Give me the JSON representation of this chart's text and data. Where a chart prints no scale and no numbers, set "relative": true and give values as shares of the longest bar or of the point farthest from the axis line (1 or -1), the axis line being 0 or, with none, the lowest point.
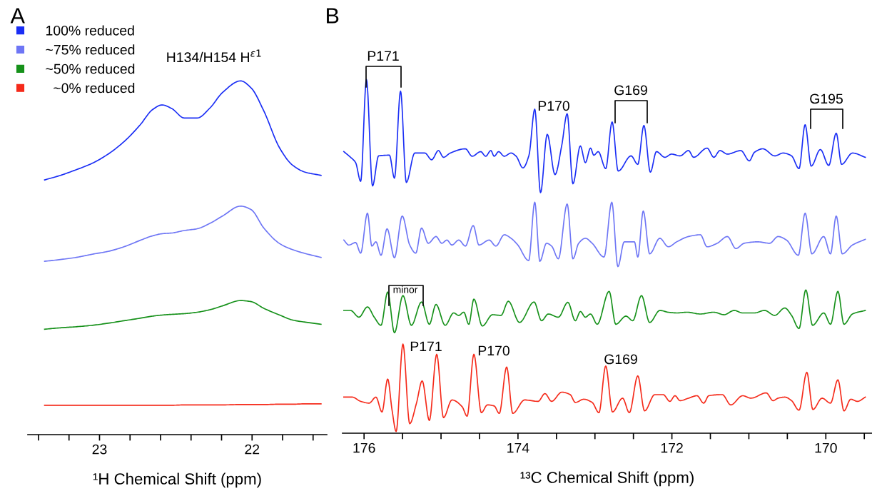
{
  "chart_data": [
    {
      "type": "line",
      "title": "A",
      "xlabel": "¹H Chemical Shift (ppm)",
      "relative": true,
      "legend": "top left",
      "grid": false,
      "tick_labels": "x",
      "xlim": [
        23.47,
        21.51
      ],
      "xticks": [
        {
          "value": 23.4,
          "label": null
        },
        {
          "value": 23.2,
          "label": null
        },
        23,
        {
          "value": 22.8,
          "label": null
        },
        {
          "value": 22.6,
          "label": null
        },
        {
          "value": 22.4,
          "label": null
        },
        {
          "value": 22.2,
          "label": null
        },
        22,
        {
          "value": 21.8,
          "label": null
        },
        {
          "value": 21.6,
          "label": null
        }
      ],
      "x": [
        23.36,
        23.256,
        23.152,
        23.048,
        22.944,
        22.84,
        22.735,
        22.652,
        22.59,
        22.527,
        22.444,
        22.36,
        22.277,
        22.194,
        22.075,
        22.006,
        21.923,
        21.819,
        21.735,
        21.652,
        21.548
      ],
      "annotations": [
        "H134/H154 H$^{ε1}$"
      ],
      "series": [
        {
          "name": "100% reduced",
          "color": "#1a2ef5",
          "values": [
            0.72,
            0.733,
            0.749,
            0.767,
            0.793,
            0.828,
            0.875,
            0.919,
            0.932,
            0.922,
            0.895,
            0.895,
            0.923,
            0.967,
            1.0,
            0.98,
            0.915,
            0.81,
            0.762,
            0.742,
            0.733
          ]
        },
        {
          "name": "~75% reduced",
          "color": "#6e76f5",
          "values": [
            0.49,
            0.495,
            0.501,
            0.51,
            0.518,
            0.531,
            0.549,
            0.562,
            0.568,
            0.57,
            0.577,
            0.582,
            0.597,
            0.618,
            0.646,
            0.636,
            0.584,
            0.54,
            0.523,
            0.512,
            0.501
          ]
        },
        {
          "name": "~50% reduced",
          "color": "#16911a",
          "values": [
            0.298,
            0.302,
            0.305,
            0.309,
            0.315,
            0.322,
            0.329,
            0.335,
            0.338,
            0.34,
            0.342,
            0.346,
            0.353,
            0.364,
            0.379,
            0.376,
            0.357,
            0.338,
            0.324,
            0.318,
            0.312
          ]
        },
        {
          "name": "  ~0% reduced",
          "color": "#f52a1a",
          "values": [
            0.083,
            0.083,
            0.083,
            0.083,
            0.083,
            0.083,
            0.083,
            0.083,
            0.083,
            0.083,
            0.084,
            0.084,
            0.084,
            0.084,
            0.085,
            0.085,
            0.085,
            0.086,
            0.086,
            0.087,
            0.087
          ]
        }
      ]
    },
    {
      "type": "line",
      "title": "B",
      "xlabel": "¹³C Chemical Shift (ppm)",
      "relative": true,
      "grid": false,
      "tick_labels": "x",
      "xlim": [
        176.28,
        169.4
      ],
      "xticks": [
        176,
        {
          "value": 175.5,
          "label": null
        },
        {
          "value": 175,
          "label": null
        },
        {
          "value": 174.5,
          "label": null
        },
        174,
        {
          "value": 173.5,
          "label": null
        },
        {
          "value": 173,
          "label": null
        },
        {
          "value": 172.5,
          "label": null
        },
        172,
        {
          "value": 171.5,
          "label": null
        },
        {
          "value": 171,
          "label": null
        },
        {
          "value": 170.5,
          "label": null
        },
        170,
        {
          "value": 169.5,
          "label": null
        }
      ],
      "annotations": [
        "P171",
        "G169",
        "G195",
        "minor",
        "P170",
        "P171",
        "P170",
        "G169"
      ],
      "series": [
        {
          "color": "#1a2ef5",
          "x": [
            176.263,
            176.176,
            176.11,
            176.044,
            175.969,
            175.89,
            175.811,
            175.671,
            175.605,
            175.526,
            175.451,
            175.341,
            175.21,
            175.122,
            175.034,
            174.968,
            174.88,
            174.683,
            174.595,
            174.485,
            174.419,
            174.353,
            174.309,
            174.252,
            174.178,
            174.09,
            174.024,
            173.936,
            173.857,
            173.782,
            173.707,
            173.62,
            173.519,
            173.431,
            173.361,
            173.286,
            173.19,
            173.124,
            173.058,
            173.014,
            172.957,
            172.86,
            172.777,
            172.698,
            172.531,
            172.443,
            172.364,
            172.28,
            172.201,
            172.092,
            172.004,
            171.894,
            171.784,
            171.718,
            171.543,
            171.455,
            171.376,
            171.279,
            171.104,
            170.994,
            170.928,
            170.818,
            170.664,
            170.555,
            170.445,
            170.348,
            170.269,
            170.19,
            170.071,
            169.962,
            169.865,
            169.795,
            169.654,
            169.487
          ],
          "values": [
            0.796,
            0.78,
            0.765,
            0.712,
            1.0,
            0.699,
            0.784,
            0.786,
            0.721,
            0.967,
            0.709,
            0.792,
            0.792,
            0.773,
            0.799,
            0.78,
            0.792,
            0.804,
            0.783,
            0.796,
            0.783,
            0.799,
            0.783,
            0.796,
            0.783,
            0.792,
            0.783,
            0.75,
            0.786,
            0.916,
            0.68,
            0.845,
            0.731,
            0.814,
            0.903,
            0.705,
            0.812,
            0.765,
            0.806,
            0.786,
            0.796,
            0.748,
            0.88,
            0.741,
            0.784,
            0.76,
            0.87,
            0.738,
            0.796,
            0.78,
            0.789,
            0.784,
            0.799,
            0.78,
            0.806,
            0.78,
            0.799,
            0.789,
            0.799,
            0.77,
            0.794,
            0.804,
            0.784,
            0.792,
            0.784,
            0.748,
            0.872,
            0.755,
            0.802,
            0.757,
            0.848,
            0.76,
            0.792,
            0.78
          ]
        },
        {
          "color": "#6e76f5",
          "x": [
            176.263,
            176.198,
            176.11,
            176.044,
            175.956,
            175.899,
            175.846,
            175.78,
            175.701,
            175.605,
            175.504,
            175.407,
            175.328,
            175.253,
            175.166,
            175.065,
            174.99,
            174.924,
            174.858,
            174.77,
            174.683,
            174.582,
            174.507,
            174.375,
            174.287,
            174.178,
            174.09,
            174.002,
            173.861,
            173.782,
            173.716,
            173.629,
            173.563,
            173.475,
            173.361,
            173.286,
            173.211,
            173.124,
            173.036,
            172.882,
            172.781,
            172.702,
            172.619,
            172.487,
            172.443,
            172.372,
            172.289,
            172.157,
            172.047,
            171.938,
            171.784,
            171.63,
            171.543,
            171.411,
            171.279,
            171.169,
            171.06,
            170.884,
            170.73,
            170.62,
            170.511,
            170.357,
            170.269,
            170.181,
            170.027,
            169.939,
            169.865,
            169.786,
            169.654,
            169.487
          ],
          "values": [
            0.546,
            0.532,
            0.539,
            0.509,
            0.622,
            0.529,
            0.541,
            0.503,
            0.578,
            0.496,
            0.614,
            0.532,
            0.509,
            0.58,
            0.537,
            0.556,
            0.537,
            0.546,
            0.532,
            0.546,
            0.529,
            0.587,
            0.532,
            0.546,
            0.529,
            0.561,
            0.551,
            0.532,
            0.488,
            0.653,
            0.486,
            0.537,
            0.529,
            0.493,
            0.648,
            0.493,
            0.537,
            0.551,
            0.537,
            0.498,
            0.653,
            0.471,
            0.541,
            0.541,
            0.498,
            0.628,
            0.507,
            0.551,
            0.527,
            0.541,
            0.556,
            0.561,
            0.527,
            0.537,
            0.556,
            0.522,
            0.537,
            0.541,
            0.537,
            0.556,
            0.546,
            0.503,
            0.622,
            0.507,
            0.556,
            0.507,
            0.614,
            0.507,
            0.532,
            0.548
          ]
        },
        {
          "color": "#16911a",
          "x": [
            176.263,
            176.176,
            176.066,
            175.956,
            175.868,
            175.78,
            175.693,
            175.605,
            175.495,
            175.385,
            175.253,
            175.152,
            175.065,
            174.946,
            174.836,
            174.77,
            174.704,
            174.639,
            174.573,
            174.463,
            174.331,
            174.221,
            174.125,
            173.98,
            173.791,
            173.694,
            173.606,
            173.475,
            173.352,
            173.255,
            173.189,
            173.124,
            173.058,
            172.97,
            172.816,
            172.729,
            172.597,
            172.509,
            172.395,
            172.289,
            172.157,
            172.047,
            171.938,
            171.806,
            171.63,
            171.455,
            171.323,
            171.191,
            171.081,
            170.928,
            170.796,
            170.664,
            170.533,
            170.445,
            170.348,
            170.26,
            170.172,
            170.027,
            169.939,
            169.843,
            169.764,
            169.654,
            169.487
          ],
          "values": [
            0.347,
            0.347,
            0.328,
            0.357,
            0.328,
            0.305,
            0.399,
            0.284,
            0.389,
            0.305,
            0.371,
            0.308,
            0.364,
            0.305,
            0.34,
            0.333,
            0.342,
            0.308,
            0.379,
            0.303,
            0.335,
            0.333,
            0.373,
            0.313,
            0.371,
            0.318,
            0.337,
            0.328,
            0.37,
            0.318,
            0.344,
            0.328,
            0.337,
            0.308,
            0.401,
            0.308,
            0.331,
            0.318,
            0.389,
            0.313,
            0.347,
            0.342,
            0.34,
            0.342,
            0.337,
            0.342,
            0.335,
            0.347,
            0.34,
            0.34,
            0.347,
            0.333,
            0.354,
            0.333,
            0.296,
            0.405,
            0.305,
            0.34,
            0.308,
            0.401,
            0.308,
            0.337,
            0.347
          ]
        },
        {
          "color": "#f52a1a",
          "x": [
            176.263,
            176.154,
            176.044,
            175.934,
            175.846,
            175.767,
            175.693,
            175.636,
            175.583,
            175.495,
            175.407,
            175.319,
            175.245,
            175.152,
            175.056,
            174.968,
            174.858,
            174.726,
            174.661,
            174.573,
            174.476,
            174.397,
            174.309,
            174.243,
            174.147,
            174.068,
            173.914,
            173.738,
            173.65,
            173.563,
            173.431,
            173.321,
            173.255,
            173.145,
            173.036,
            172.948,
            172.86,
            172.772,
            172.641,
            172.553,
            172.443,
            172.355,
            172.223,
            172.113,
            172.026,
            171.96,
            171.894,
            171.784,
            171.674,
            171.587,
            171.521,
            171.345,
            171.235,
            171.081,
            170.972,
            170.774,
            170.686,
            170.62,
            170.533,
            170.445,
            170.348,
            170.247,
            170.168,
            170.049,
            169.939,
            169.843,
            169.764,
            169.676,
            169.588,
            169.487
          ],
          "values": [
            0.102,
            0.102,
            0.09,
            0.085,
            0.102,
            0.06,
            0.153,
            0.065,
            0.005,
            0.252,
            0.027,
            0.085,
            0.148,
            0.036,
            0.223,
            0.044,
            0.094,
            0.075,
            0.048,
            0.223,
            0.058,
            0.08,
            0.077,
            0.056,
            0.187,
            0.056,
            0.094,
            0.09,
            0.112,
            0.09,
            0.116,
            0.109,
            0.087,
            0.096,
            0.087,
            0.058,
            0.19,
            0.06,
            0.099,
            0.058,
            0.162,
            0.063,
            0.109,
            0.109,
            0.09,
            0.106,
            0.092,
            0.099,
            0.106,
            0.085,
            0.106,
            0.109,
            0.08,
            0.106,
            0.099,
            0.114,
            0.092,
            0.099,
            0.102,
            0.092,
            0.065,
            0.172,
            0.067,
            0.099,
            0.085,
            0.151,
            0.063,
            0.096,
            0.09,
            0.102
          ]
        }
      ]
    }
  ]
}
